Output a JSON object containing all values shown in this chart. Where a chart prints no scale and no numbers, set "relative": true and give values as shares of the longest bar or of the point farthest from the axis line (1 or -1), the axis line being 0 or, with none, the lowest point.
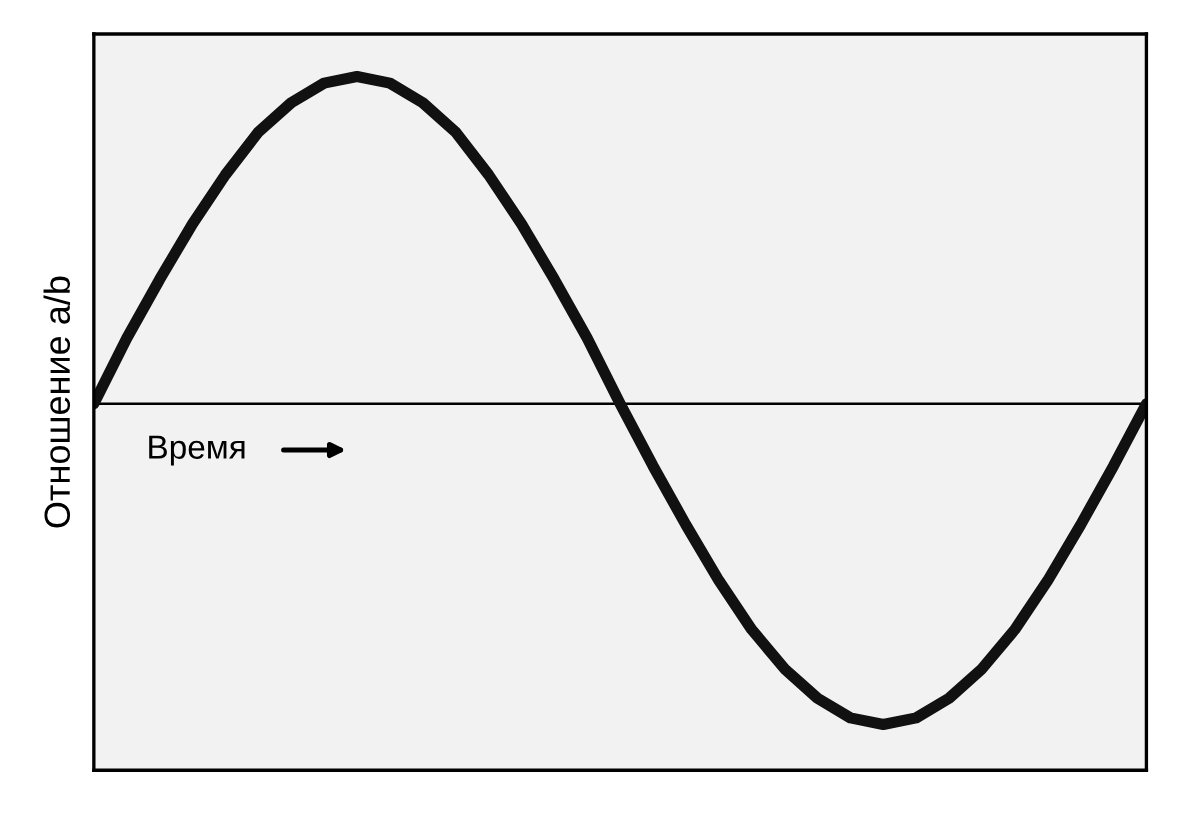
{
  "chart_data": {
    "type": "line",
    "relative": true,
    "ylabel": "Отношение a/b",
    "annotations": [
      "Время"
    ],
    "categories": [
      null,
      null,
      null,
      null,
      null,
      null,
      null,
      null,
      null,
      null,
      null,
      null,
      null,
      null,
      null,
      null,
      null,
      null,
      null,
      null,
      null,
      null,
      null,
      null,
      null,
      null,
      null,
      null,
      null,
      null,
      null,
      null,
      null
    ],
    "series": [
      {
        "color": "#111111",
        "values": [
          0,
          0.2,
          0.38,
          0.55,
          0.7,
          0.83,
          0.92,
          0.98,
          1,
          0.98,
          0.92,
          0.83,
          0.7,
          0.55,
          0.38,
          0.2,
          0,
          -0.19,
          -0.37,
          -0.54,
          -0.69,
          -0.81,
          -0.9,
          -0.96,
          -0.98,
          -0.96,
          -0.9,
          -0.81,
          -0.69,
          -0.54,
          -0.37,
          -0.19,
          0
        ]
      }
    ],
    "legend": false,
    "marker": "none",
    "line_style": "solid"
  }
}
